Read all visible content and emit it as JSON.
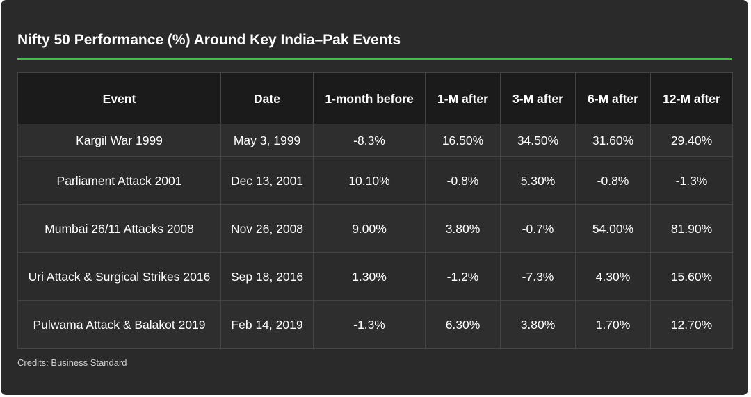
{
  "colors": {
    "card_background": "#2a2a2a",
    "accent_rule": "#3cc43c",
    "header_background": "#1b1b1b",
    "text": "#ffffff"
  },
  "chart_data": {
    "type": "table",
    "title": "Nifty 50 Performance (%) Around Key India–Pak Events",
    "columns": [
      "Event",
      "Date",
      "1-month before",
      "1-M after",
      "3-M after",
      "6-M after",
      "12-M after"
    ],
    "rows": [
      [
        "Kargil War 1999",
        "May 3, 1999",
        "-8.3%",
        "16.50%",
        "34.50%",
        "31.60%",
        "29.40%"
      ],
      [
        "Parliament Attack 2001",
        "Dec 13, 2001",
        "10.10%",
        "-0.8%",
        "5.30%",
        "-0.8%",
        "-1.3%"
      ],
      [
        "Mumbai 26/11 Attacks 2008",
        "Nov 26, 2008",
        "9.00%",
        "3.80%",
        "-0.7%",
        "54.00%",
        "81.90%"
      ],
      [
        "Uri Attack & Surgical Strikes 2016",
        "Sep 18, 2016",
        "1.30%",
        "-1.2%",
        "-7.3%",
        "4.30%",
        "15.60%"
      ],
      [
        "Pulwama Attack & Balakot 2019",
        "Feb 14, 2019",
        "-1.3%",
        "6.30%",
        "3.80%",
        "1.70%",
        "12.70%"
      ]
    ]
  },
  "credits": "Credits: Business Standard"
}
